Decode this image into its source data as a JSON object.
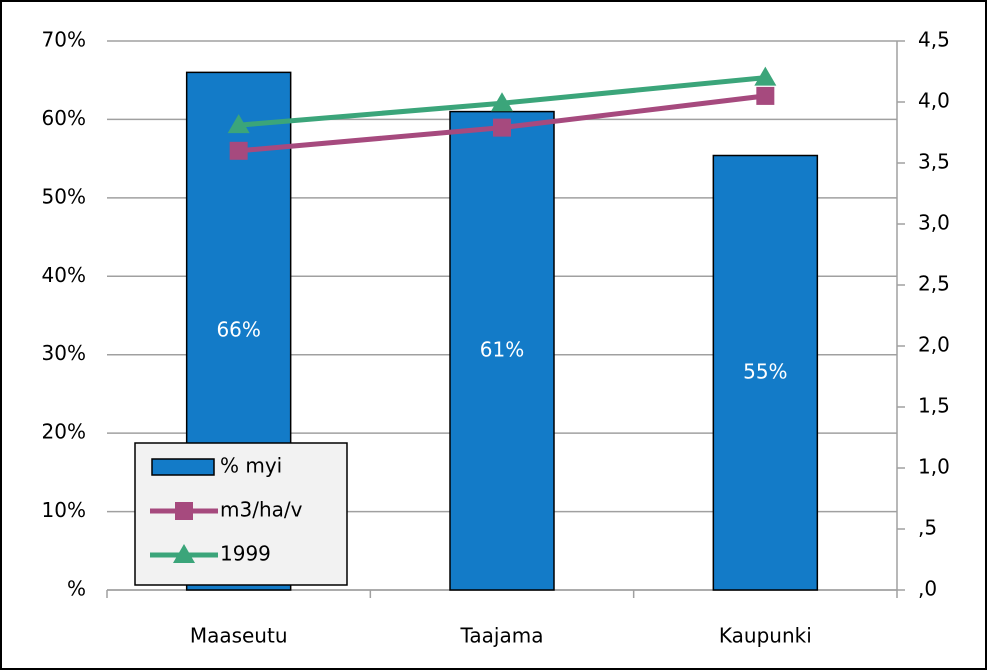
{
  "chart_data": {
    "type": "combo",
    "categories": [
      "Maaseutu",
      "Taajama",
      "Kaupunki"
    ],
    "series": [
      {
        "name": "% myi",
        "type": "bar",
        "color": "#137bc8",
        "values": [
          66,
          61,
          55.4
        ],
        "value_labels": [
          "66%",
          "61%",
          "55%"
        ]
      },
      {
        "name": "m3/ha/v",
        "type": "line",
        "marker": "square",
        "axis": "y2",
        "color": "#a64a7e",
        "values": [
          3.6,
          3.79,
          4.05
        ]
      },
      {
        "name": "1999",
        "type": "line",
        "marker": "triangle",
        "axis": "y2",
        "color": "#3ba57a",
        "values": [
          3.81,
          3.99,
          4.2
        ]
      }
    ],
    "ylim": [
      0,
      70
    ],
    "yticks": [
      {
        "value": 0,
        "label": "%"
      },
      {
        "value": 10,
        "label": "10%"
      },
      {
        "value": 20,
        "label": "20%"
      },
      {
        "value": 30,
        "label": "30%"
      },
      {
        "value": 40,
        "label": "40%"
      },
      {
        "value": 50,
        "label": "50%"
      },
      {
        "value": 60,
        "label": "60%"
      },
      {
        "value": 70,
        "label": "70%"
      }
    ],
    "y2lim": [
      0,
      4.5
    ],
    "y2ticks": [
      {
        "value": 0,
        "label": ",0"
      },
      {
        "value": 0.5,
        "label": ",5"
      },
      {
        "value": 1,
        "label": "1,0"
      },
      {
        "value": 1.5,
        "label": "1,5"
      },
      {
        "value": 2,
        "label": "2,0"
      },
      {
        "value": 2.5,
        "label": "2,5"
      },
      {
        "value": 3,
        "label": "3,0"
      },
      {
        "value": 3.5,
        "label": "3,5"
      },
      {
        "value": 4,
        "label": "4,0"
      },
      {
        "value": 4.5,
        "label": "4,5"
      }
    ],
    "grid": true,
    "legend": "lower left"
  }
}
